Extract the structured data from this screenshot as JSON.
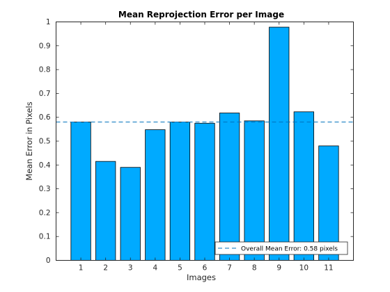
{
  "chart_data": {
    "type": "bar",
    "title": "Mean Reprojection Error per Image",
    "xlabel": "Images",
    "ylabel": "Mean Error in Pixels",
    "categories": [
      "1",
      "2",
      "3",
      "4",
      "5",
      "6",
      "7",
      "8",
      "9",
      "10",
      "11"
    ],
    "values": [
      0.58,
      0.415,
      0.39,
      0.548,
      0.58,
      0.575,
      0.618,
      0.585,
      0.978,
      0.623,
      0.48
    ],
    "ylim": [
      0,
      1
    ],
    "xlim": [
      0,
      12
    ],
    "yticks": [
      0,
      0.1,
      0.2,
      0.3,
      0.4,
      0.5,
      0.6,
      0.7,
      0.8,
      0.9,
      1
    ],
    "ytick_labels": [
      "0",
      "0.1",
      "0.2",
      "0.3",
      "0.4",
      "0.5",
      "0.6",
      "0.7",
      "0.8",
      "0.9",
      "1"
    ],
    "reference_line": {
      "value": 0.58,
      "style": "dashed",
      "label": "Overall Mean Error: 0.58 pixels"
    },
    "legend_position": "bottom-right",
    "grid": false,
    "colors": {
      "bar_fill": "#00AAFF",
      "bar_edge": "#000000",
      "reference_line": "#0072BD",
      "axis": "#262626"
    }
  }
}
